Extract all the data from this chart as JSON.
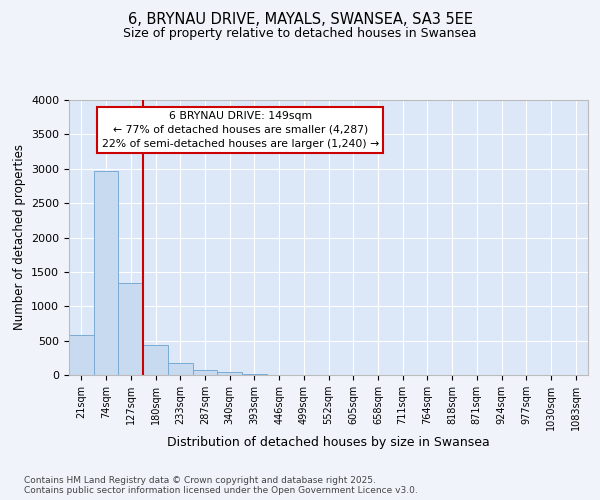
{
  "title_line1": "6, BRYNAU DRIVE, MAYALS, SWANSEA, SA3 5EE",
  "title_line2": "Size of property relative to detached houses in Swansea",
  "xlabel": "Distribution of detached houses by size in Swansea",
  "ylabel": "Number of detached properties",
  "categories": [
    "21sqm",
    "74sqm",
    "127sqm",
    "180sqm",
    "233sqm",
    "287sqm",
    "340sqm",
    "393sqm",
    "446sqm",
    "499sqm",
    "552sqm",
    "605sqm",
    "658sqm",
    "711sqm",
    "764sqm",
    "818sqm",
    "871sqm",
    "924sqm",
    "977sqm",
    "1030sqm",
    "1083sqm"
  ],
  "values": [
    575,
    2970,
    1340,
    430,
    175,
    80,
    40,
    18,
    5,
    0,
    0,
    0,
    0,
    0,
    0,
    0,
    0,
    0,
    0,
    0,
    0
  ],
  "bar_color": "#c8daf0",
  "bar_edge_color": "#7aabd4",
  "vline_x": 2.5,
  "vline_color": "#cc0000",
  "annotation_title": "6 BRYNAU DRIVE: 149sqm",
  "annotation_line2": "← 77% of detached houses are smaller (4,287)",
  "annotation_line3": "22% of semi-detached houses are larger (1,240) →",
  "annotation_box_color": "#cc0000",
  "ylim": [
    0,
    4000
  ],
  "yticks": [
    0,
    500,
    1000,
    1500,
    2000,
    2500,
    3000,
    3500,
    4000
  ],
  "bg_color": "#f0f4fa",
  "plot_bg_color": "#dce8f8",
  "grid_color": "#ffffff",
  "footer_line1": "Contains HM Land Registry data © Crown copyright and database right 2025.",
  "footer_line2": "Contains public sector information licensed under the Open Government Licence v3.0."
}
